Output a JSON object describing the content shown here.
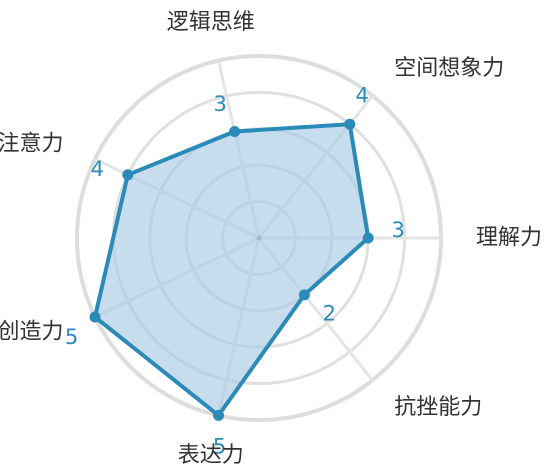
{
  "colors": {
    "series": "#2b8bb8",
    "fill": "#a9c9e4",
    "grid": "#e0e0e0",
    "label": "#333333"
  },
  "chart_data": {
    "type": "radar",
    "title": "",
    "axes": [
      "理解力",
      "空间想象力",
      "逻辑思维",
      "注意力",
      "创造力",
      "表达力",
      "抗挫能力"
    ],
    "rmax": 5,
    "rings": 5,
    "grid": true,
    "series": [
      {
        "name": "",
        "values": [
          3,
          4,
          3,
          4,
          5,
          5,
          2
        ]
      }
    ]
  }
}
